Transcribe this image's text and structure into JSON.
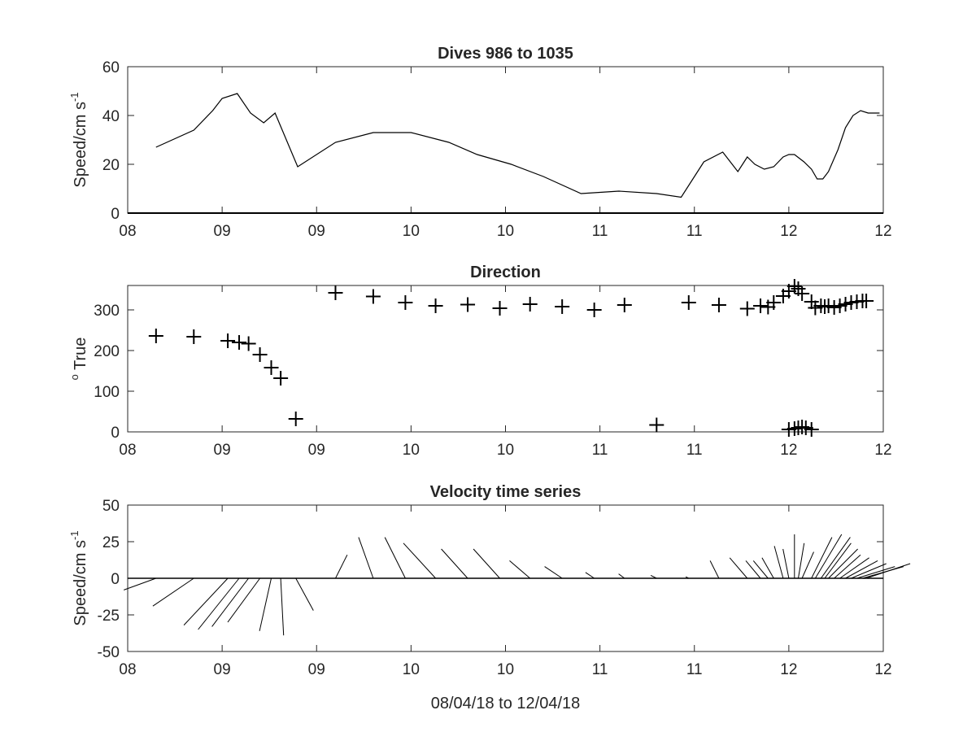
{
  "chart_data": [
    {
      "type": "line",
      "title": "Dives 986 to 1035",
      "ylabel": "Speed/cm s",
      "ylabel_sup": "-1",
      "xlim": [
        0,
        4
      ],
      "ylim": [
        0,
        60
      ],
      "xtick_values": [
        0,
        0.5,
        1,
        1.5,
        2,
        2.5,
        3,
        3.5,
        4
      ],
      "xtick_labels": [
        "08",
        "09",
        "09",
        "10",
        "10",
        "11",
        "11",
        "12",
        "12"
      ],
      "ytick_values": [
        0,
        20,
        40,
        60
      ],
      "ytick_labels": [
        "0",
        "20",
        "40",
        "60"
      ],
      "series": [
        {
          "color": "#000000",
          "x": [
            0.15,
            0.35,
            0.45,
            0.5,
            0.58,
            0.65,
            0.72,
            0.78,
            0.9,
            1.1,
            1.3,
            1.5,
            1.7,
            1.85,
            2.03,
            2.2,
            2.4,
            2.6,
            2.8,
            2.93,
            3.05,
            3.15,
            3.23,
            3.28,
            3.32,
            3.37,
            3.42,
            3.47,
            3.5,
            3.53,
            3.58,
            3.62,
            3.65,
            3.68,
            3.71,
            3.76,
            3.8,
            3.84,
            3.88,
            3.92,
            3.95,
            3.98
          ],
          "y": [
            27,
            34,
            42,
            47,
            49,
            41,
            37,
            41,
            19,
            29,
            33,
            33,
            29,
            24,
            20,
            15,
            8,
            9,
            8,
            6.5,
            21,
            25,
            17,
            23,
            20,
            18,
            19,
            23,
            24,
            24,
            21,
            18,
            14,
            14,
            17,
            26,
            35,
            40,
            42,
            41,
            41,
            41
          ]
        }
      ]
    },
    {
      "type": "scatter",
      "title": "Direction",
      "ylabel": " True",
      "ylabel_sup": "o",
      "xlim": [
        0,
        4
      ],
      "ylim": [
        0,
        360
      ],
      "xtick_values": [
        0,
        0.5,
        1,
        1.5,
        2,
        2.5,
        3,
        3.5,
        4
      ],
      "xtick_labels": [
        "08",
        "09",
        "09",
        "10",
        "10",
        "11",
        "11",
        "12",
        "12"
      ],
      "ytick_values": [
        0,
        100,
        200,
        300
      ],
      "ytick_labels": [
        "0",
        "100",
        "200",
        "300"
      ],
      "marker": "+",
      "series": [
        {
          "color": "#000000",
          "x": [
            0.15,
            0.35,
            0.53,
            0.59,
            0.64,
            0.7,
            0.76,
            0.81,
            0.89,
            1.1,
            1.3,
            1.47,
            1.63,
            1.8,
            1.97,
            2.13,
            2.3,
            2.47,
            2.63,
            2.8,
            2.97,
            3.13,
            3.28,
            3.35,
            3.39,
            3.42,
            3.47,
            3.5,
            3.53,
            3.55,
            3.57,
            3.62,
            3.64,
            3.67,
            3.69,
            3.71,
            3.74,
            3.77,
            3.8,
            3.83,
            3.86,
            3.89,
            3.91,
            3.5,
            3.53,
            3.55,
            3.57,
            3.59,
            3.62
          ],
          "y": [
            236,
            234,
            224,
            220,
            217,
            190,
            158,
            132,
            32,
            342,
            333,
            318,
            310,
            313,
            304,
            314,
            308,
            300,
            312,
            17,
            318,
            312,
            303,
            310,
            307,
            318,
            334,
            346,
            358,
            352,
            340,
            320,
            305,
            310,
            308,
            310,
            306,
            310,
            314,
            318,
            320,
            322,
            322,
            6,
            8,
            10,
            12,
            10,
            6
          ]
        }
      ]
    },
    {
      "type": "line",
      "title": "Velocity time series",
      "ylabel": "Speed/cm s",
      "ylabel_sup": "-1",
      "xlabel": "08/04/18 to 12/04/18",
      "xlim": [
        0,
        4
      ],
      "ylim": [
        -50,
        50
      ],
      "xtick_values": [
        0,
        0.5,
        1,
        1.5,
        2,
        2.5,
        3,
        3.5,
        4
      ],
      "xtick_labels": [
        "08",
        "09",
        "09",
        "10",
        "10",
        "11",
        "11",
        "12",
        "12"
      ],
      "ytick_values": [
        -50,
        -25,
        0,
        25,
        50
      ],
      "ytick_labels": [
        "-50",
        "-25",
        "0",
        "25",
        "50"
      ],
      "series": [
        {
          "color": "#000000",
          "x": [
            0.15,
            0.35,
            0.53,
            0.59,
            0.64,
            0.7,
            0.76,
            0.81,
            0.89,
            1.1,
            1.3,
            1.47,
            1.63,
            1.8,
            1.97,
            2.13,
            2.3,
            2.47,
            2.63,
            2.8,
            2.97,
            3.13,
            3.28,
            3.35,
            3.39,
            3.42,
            3.47,
            3.5,
            3.53,
            3.55,
            3.57,
            3.62,
            3.64,
            3.67,
            3.69,
            3.71,
            3.74,
            3.77,
            3.8,
            3.83,
            3.86,
            3.89,
            3.91
          ],
          "u": [
            -22,
            -28,
            -30,
            -28,
            -25,
            -22,
            -8,
            2,
            12,
            8,
            -10,
            -14,
            -22,
            -18,
            -18,
            -14,
            -12,
            -6,
            -4,
            -4,
            -2,
            -6,
            -12,
            -10,
            -10,
            -8,
            -6,
            -4,
            0,
            4,
            8,
            14,
            18,
            20,
            18,
            20,
            18,
            20,
            22,
            24,
            26,
            28,
            30
          ],
          "v": [
            -8,
            -19,
            -32,
            -35,
            -33,
            -30,
            -36,
            -39,
            -22,
            16,
            28,
            28,
            24,
            20,
            20,
            12,
            8,
            4,
            3,
            2,
            1,
            12,
            14,
            12,
            12,
            14,
            22,
            20,
            30,
            24,
            18,
            28,
            30,
            28,
            24,
            20,
            16,
            14,
            12,
            10,
            8,
            8,
            10
          ]
        }
      ]
    }
  ]
}
